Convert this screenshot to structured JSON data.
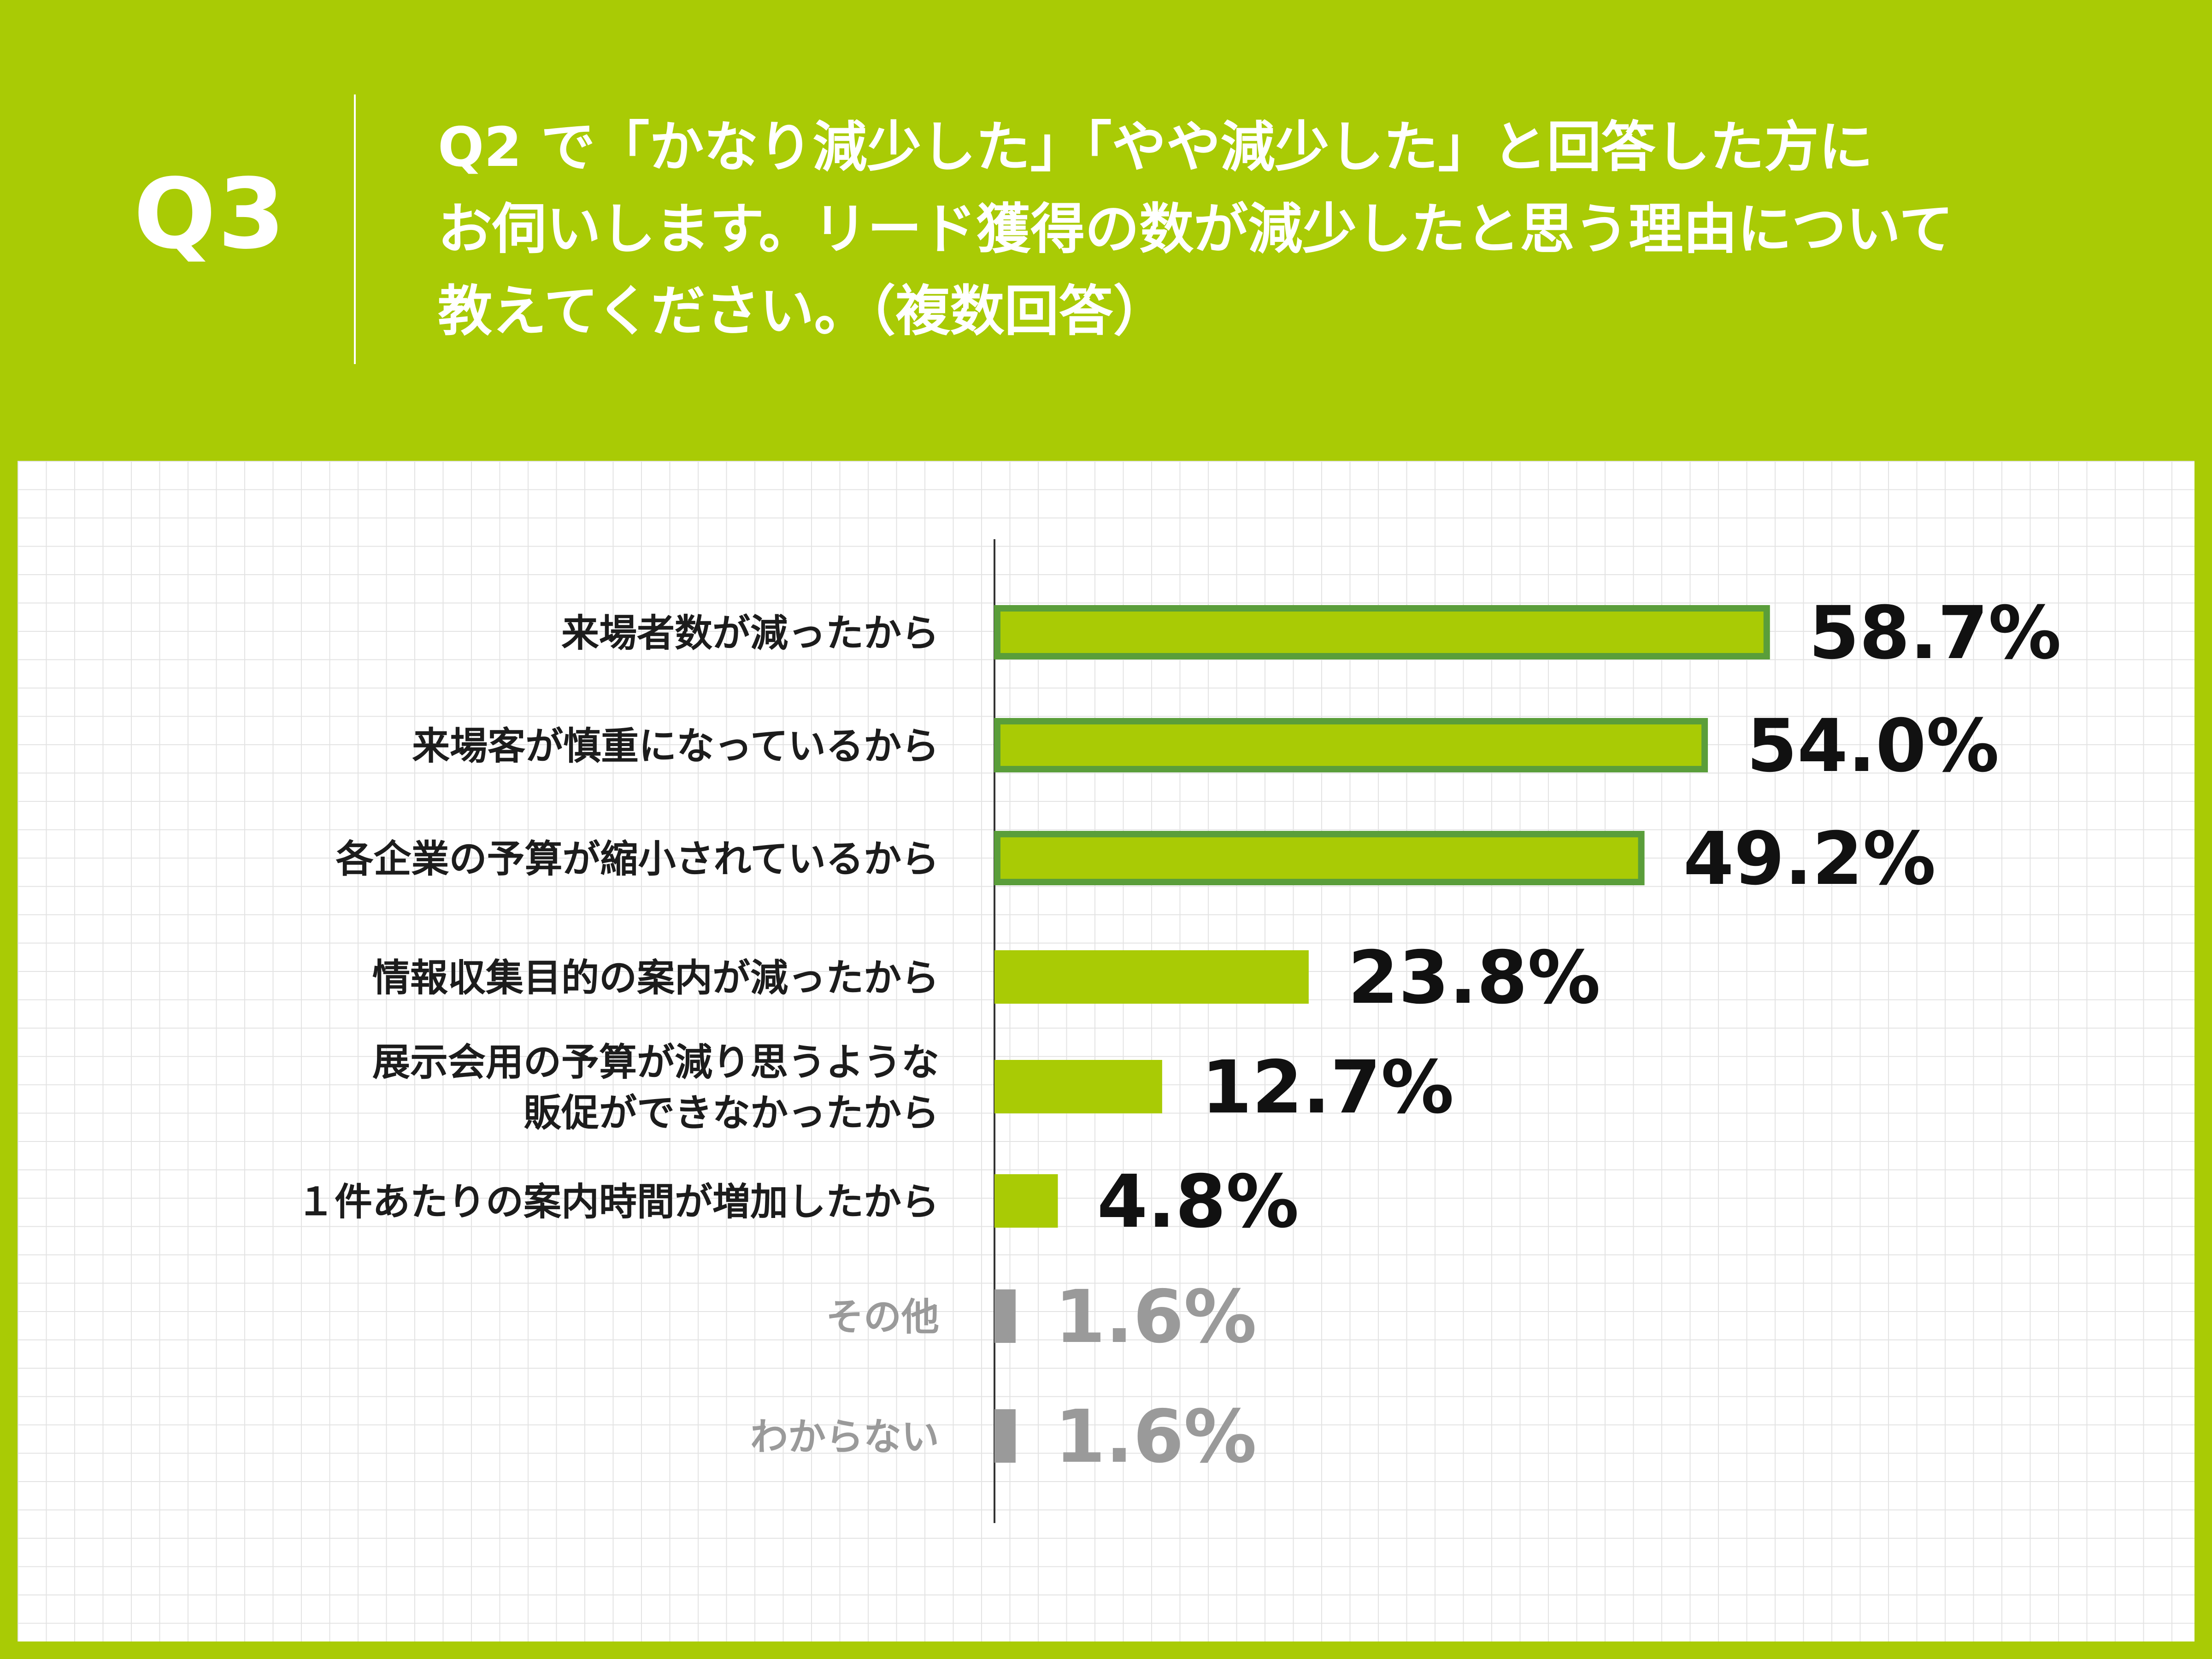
{
  "header": {
    "badge": "Q3",
    "question_lines": [
      "Q2 で「かなり減少した」「やや減少した」と回答した方に",
      "お伺いします。リード獲得の数が減少したと思う理由について",
      "教えてください。（複数回答）"
    ]
  },
  "colors": {
    "background": "#a9cb05",
    "bar_fill": "#a9cb05",
    "bar_outline": "#5a9e3a",
    "muted": "#9a9a9a",
    "text": "#111111"
  },
  "chart_data": {
    "type": "bar",
    "orientation": "horizontal",
    "categories": [
      "来場者数が減ったから",
      "来場客が慎重になっているから",
      "各企業の予算が縮小されているから",
      "情報収集目的の案内が減ったから",
      "展示会用の予算が減り思うような\n販促ができなかったから",
      "１件あたりの案内時間が増加したから",
      "その他",
      "わからない"
    ],
    "values": [
      58.7,
      54.0,
      49.2,
      23.8,
      12.7,
      4.8,
      1.6,
      1.6
    ],
    "value_labels": [
      "58.7%",
      "54.0%",
      "49.2%",
      "23.8%",
      "12.7%",
      "4.8%",
      "1.6%",
      "1.6%"
    ],
    "highlighted": [
      true,
      true,
      true,
      false,
      false,
      false,
      false,
      false
    ],
    "muted": [
      false,
      false,
      false,
      false,
      false,
      false,
      true,
      true
    ],
    "unit": "%",
    "xlim": [
      0,
      100
    ],
    "grid": true
  }
}
